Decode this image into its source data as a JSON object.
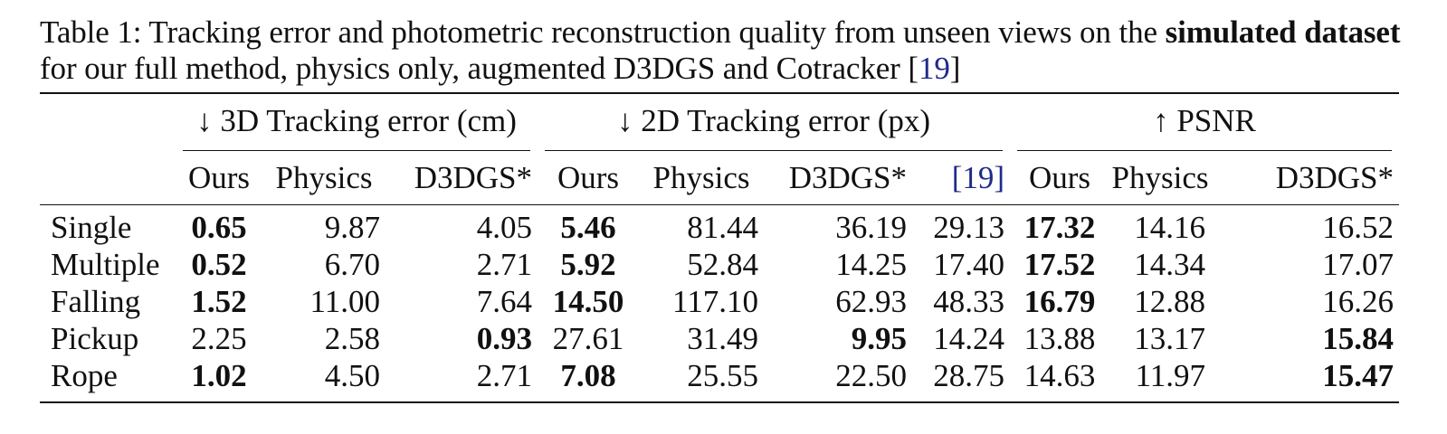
{
  "caption": {
    "prefix": "Table 1: Tracking error and photometric reconstruction quality from unseen views on the ",
    "bold": "simulated dataset",
    "suffix": " for our full method, physics only, augmented D3DGS and Cotracker [",
    "cite": "19",
    "end": "]"
  },
  "table": {
    "groups": [
      {
        "label": "↓ 3D Tracking error (cm)",
        "span": 3
      },
      {
        "label": "↓ 2D Tracking error (px)",
        "span": 4
      },
      {
        "label": "↑ PSNR",
        "span": 3
      }
    ],
    "columns": [
      "Ours",
      "Physics",
      "D3DGS*",
      "Ours",
      "Physics",
      "D3DGS*",
      "[19]",
      "Ours",
      "Physics",
      "D3DGS*"
    ],
    "rows": [
      {
        "name": "Single",
        "values": [
          "0.65",
          "9.87",
          "4.05",
          "5.46",
          "81.44",
          "36.19",
          "29.13",
          "17.32",
          "14.16",
          "16.52"
        ],
        "bold": [
          0,
          3,
          7
        ]
      },
      {
        "name": "Multiple",
        "values": [
          "0.52",
          "6.70",
          "2.71",
          "5.92",
          "52.84",
          "14.25",
          "17.40",
          "17.52",
          "14.34",
          "17.07"
        ],
        "bold": [
          0,
          3,
          7
        ]
      },
      {
        "name": "Falling",
        "values": [
          "1.52",
          "11.00",
          "7.64",
          "14.50",
          "117.10",
          "62.93",
          "48.33",
          "16.79",
          "12.88",
          "16.26"
        ],
        "bold": [
          0,
          3,
          7
        ]
      },
      {
        "name": "Pickup",
        "values": [
          "2.25",
          "2.58",
          "0.93",
          "27.61",
          "31.49",
          "9.95",
          "14.24",
          "13.88",
          "13.17",
          "15.84"
        ],
        "bold": [
          2,
          5,
          9
        ]
      },
      {
        "name": "Rope",
        "values": [
          "1.02",
          "4.50",
          "2.71",
          "7.08",
          "25.55",
          "22.50",
          "28.75",
          "14.63",
          "11.97",
          "15.47"
        ],
        "bold": [
          0,
          3,
          9
        ]
      }
    ]
  }
}
